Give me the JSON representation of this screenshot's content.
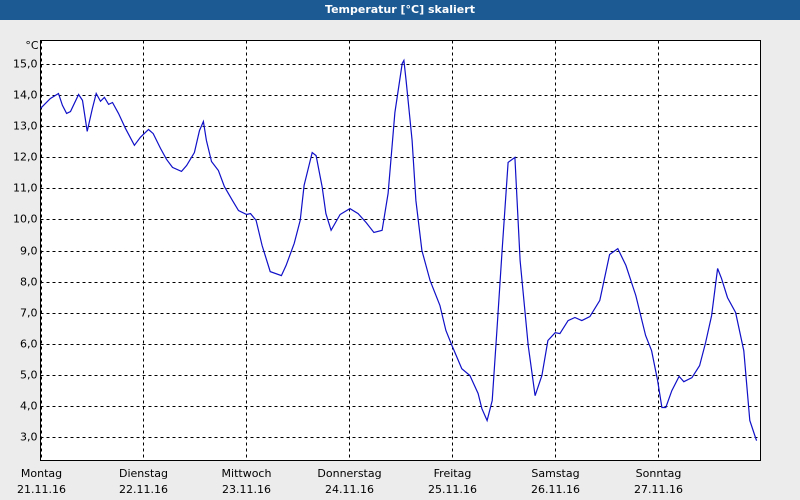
{
  "chart_data": {
    "type": "line",
    "title": "Temperatur [°C] skaliert",
    "y_label": "°C",
    "color": "#1010c8",
    "grid": true,
    "xlim": [
      0,
      168
    ],
    "ylim": [
      2.23,
      15.77
    ],
    "xticks": [
      {
        "value": 0,
        "label": "Montag",
        "date": "21.11.16"
      },
      {
        "value": 24,
        "label": "Dienstag",
        "date": "22.11.16"
      },
      {
        "value": 48,
        "label": "Mittwoch",
        "date": "23.11.16"
      },
      {
        "value": 72,
        "label": "Donnerstag",
        "date": "24.11.16"
      },
      {
        "value": 96,
        "label": "Freitag",
        "date": "25.11.16"
      },
      {
        "value": 120,
        "label": "Samstag",
        "date": "26.11.16"
      },
      {
        "value": 144,
        "label": "Sonntag",
        "date": "27.11.16"
      }
    ],
    "yticks": [
      {
        "value": 3,
        "label": "3,0"
      },
      {
        "value": 4,
        "label": "4,0"
      },
      {
        "value": 5,
        "label": "5,0"
      },
      {
        "value": 6,
        "label": "6,0"
      },
      {
        "value": 7,
        "label": "7,0"
      },
      {
        "value": 8,
        "label": "8,0"
      },
      {
        "value": 9,
        "label": "9,0"
      },
      {
        "value": 10,
        "label": "10,0"
      },
      {
        "value": 11,
        "label": "11,0"
      },
      {
        "value": 12,
        "label": "12,0"
      },
      {
        "value": 13,
        "label": "13,0"
      },
      {
        "value": 14,
        "label": "14,0"
      },
      {
        "value": 15,
        "label": "15,0"
      }
    ],
    "x": [
      0,
      2.3,
      4.2,
      5.1,
      6.1,
      7,
      8.9,
      9.8,
      10.9,
      12.1,
      13,
      14,
      14.9,
      15.9,
      16.8,
      18.2,
      19.8,
      21.9,
      23.3,
      25.2,
      26.3,
      28,
      29.4,
      30.8,
      32.9,
      34.1,
      35.9,
      37.1,
      38,
      38.7,
      39.9,
      41.5,
      42.9,
      44.8,
      46.2,
      48.1,
      49,
      50.3,
      51.7,
      53.6,
      56.2,
      57.3,
      59.2,
      60.6,
      61.5,
      63.4,
      64.3,
      65.7,
      66.6,
      67.8,
      69.9,
      72.2,
      74.1,
      76,
      77.8,
      79.7,
      81.1,
      82.7,
      84.4,
      84.8,
      85.3,
      86.7,
      87.6,
      89,
      90.9,
      93.2,
      94.6,
      96,
      98.3,
      100.2,
      102.1,
      103,
      104.2,
      105.4,
      106.5,
      107.7,
      109.1,
      110.7,
      111.9,
      113.8,
      115.4,
      117,
      118.4,
      120.1,
      121.2,
      123.1,
      124.7,
      126.3,
      128.2,
      130.5,
      132.8,
      134.7,
      136.6,
      138.9,
      141.2,
      142.6,
      144,
      145,
      145.9,
      147.3,
      149,
      150.1,
      152,
      153.8,
      155.2,
      156.6,
      158,
      158.9,
      160.3,
      162.2,
      164.1,
      165.5,
      166.9,
      167.1
    ],
    "values": [
      13.58,
      13.9,
      14.06,
      13.68,
      13.42,
      13.48,
      14.03,
      13.84,
      12.84,
      13.58,
      14.06,
      13.81,
      13.94,
      13.71,
      13.77,
      13.42,
      12.94,
      12.39,
      12.65,
      12.9,
      12.77,
      12.29,
      11.94,
      11.68,
      11.55,
      11.74,
      12.16,
      12.87,
      13.16,
      12.55,
      11.87,
      11.58,
      11.06,
      10.61,
      10.29,
      10.16,
      10.19,
      9.97,
      9.16,
      8.32,
      8.19,
      8.52,
      9.23,
      9.97,
      11.1,
      12.16,
      12.06,
      11.06,
      10.19,
      9.65,
      10.16,
      10.35,
      10.19,
      9.9,
      9.58,
      9.65,
      10.84,
      13.45,
      15.03,
      15.13,
      14.48,
      12.55,
      10.61,
      9.0,
      8.03,
      7.23,
      6.42,
      5.94,
      5.19,
      4.97,
      4.39,
      3.9,
      3.52,
      4.16,
      6.42,
      9.0,
      11.84,
      12.0,
      8.68,
      5.94,
      4.32,
      4.97,
      6.1,
      6.35,
      6.32,
      6.74,
      6.84,
      6.74,
      6.87,
      7.39,
      8.87,
      9.06,
      8.52,
      7.55,
      6.26,
      5.77,
      4.81,
      3.94,
      3.94,
      4.48,
      4.94,
      4.77,
      4.9,
      5.29,
      6.03,
      6.9,
      8.42,
      8.1,
      7.48,
      7.0,
      5.77,
      3.52,
      2.94,
      2.87
    ]
  }
}
